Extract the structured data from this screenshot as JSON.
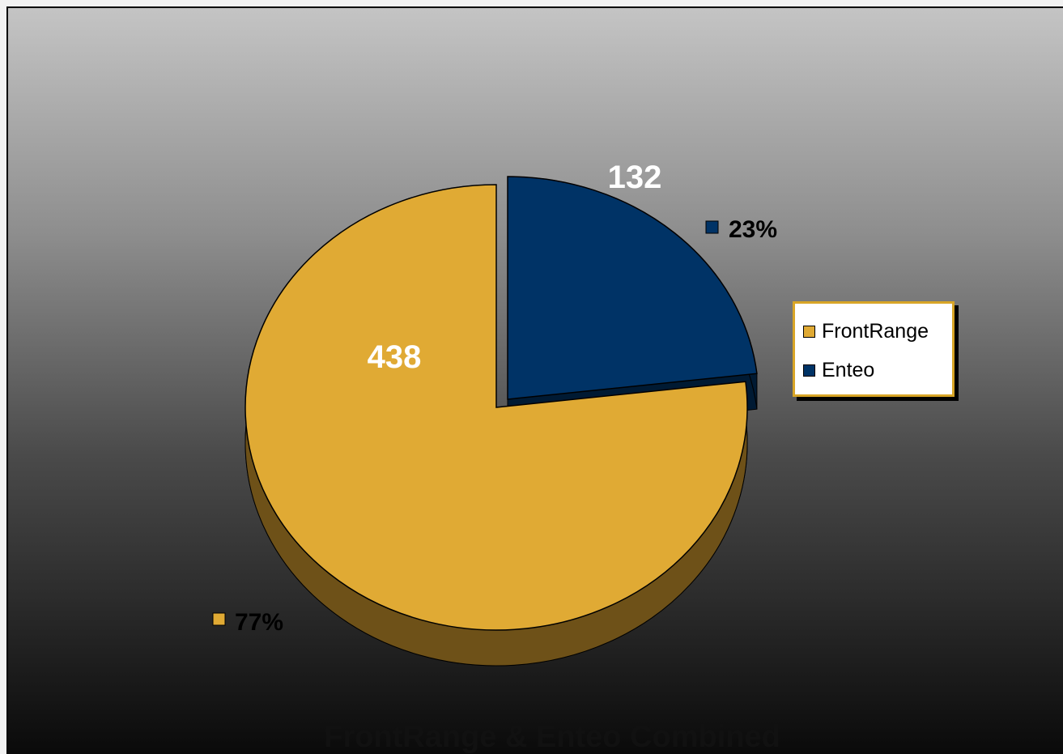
{
  "chart_data": {
    "type": "pie",
    "title": "FrontRange & Enteo Combined",
    "categories": [
      "FrontRange",
      "Enteo"
    ],
    "values": [
      438,
      132
    ],
    "percent_labels": [
      "77%",
      "23%"
    ],
    "colors": [
      "#e0aa34",
      "#003366"
    ],
    "side_colors": [
      "#6e5118",
      "#001a33"
    ],
    "legend": {
      "position": "right"
    },
    "exploded": "Enteo",
    "three_d": true
  }
}
